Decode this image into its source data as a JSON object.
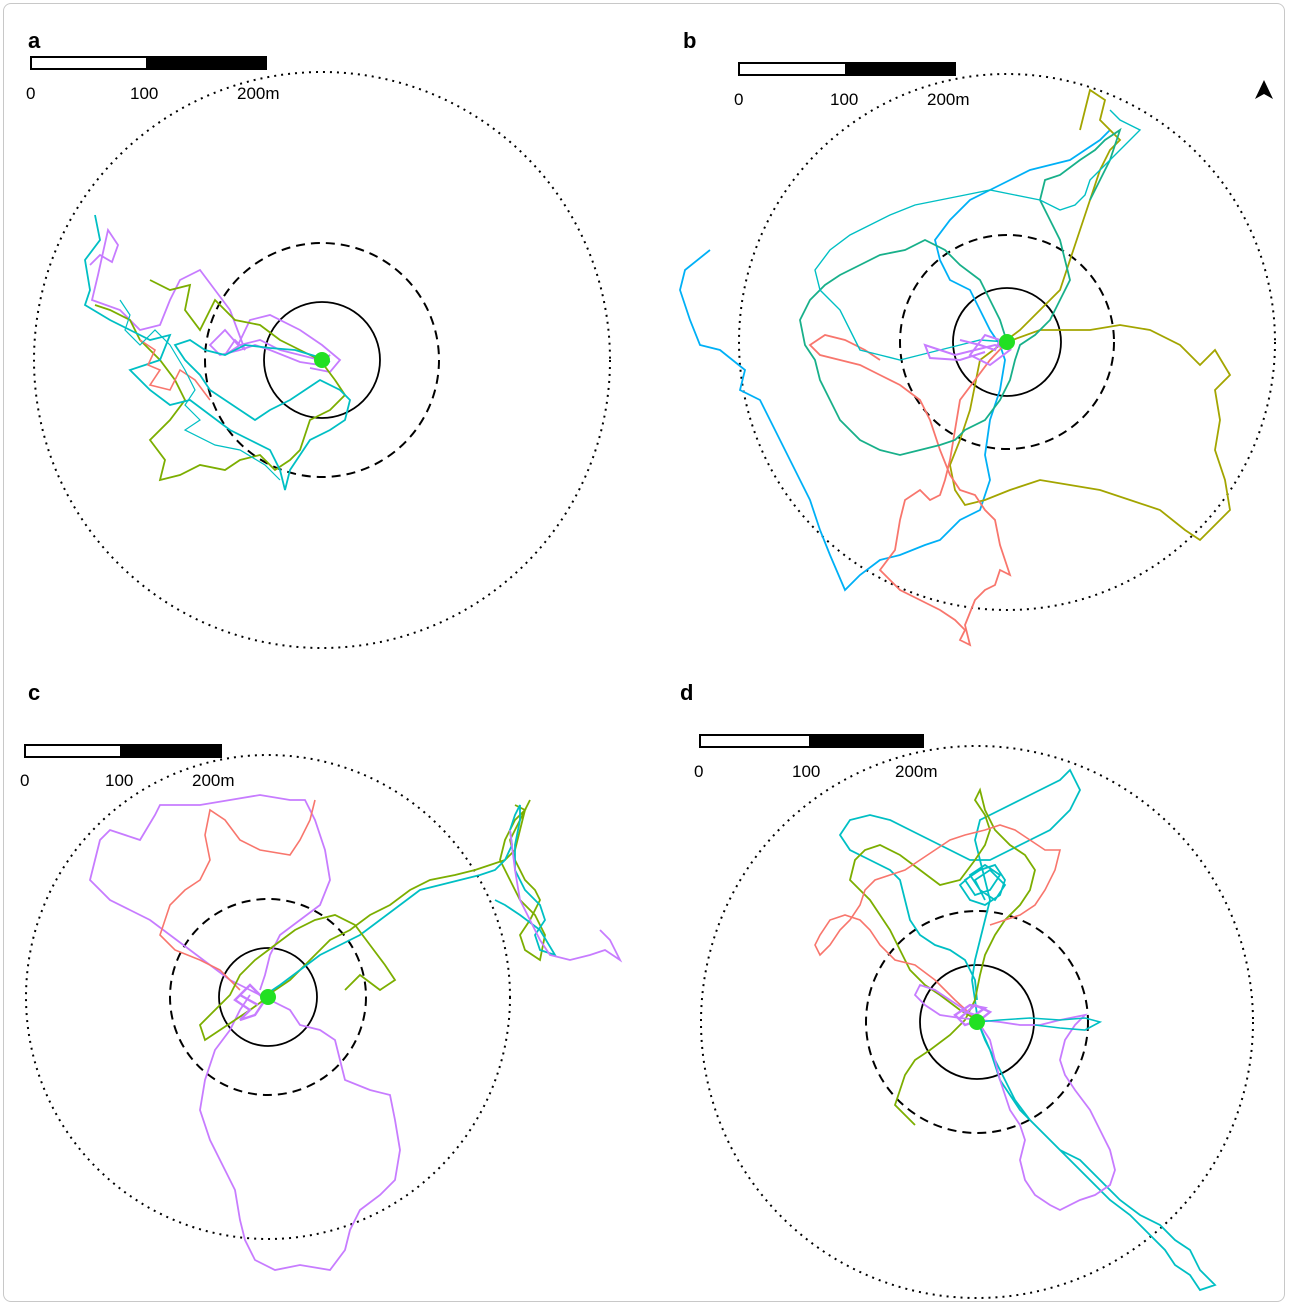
{
  "figure": {
    "panels": [
      {
        "id": "a",
        "label": "a",
        "scale_labels": [
          "0",
          "100",
          "200m"
        ],
        "north_arrow": false,
        "buffers": [
          "solid",
          "dashed",
          "dotted"
        ],
        "site_marker_color": "#22e022"
      },
      {
        "id": "b",
        "label": "b",
        "scale_labels": [
          "0",
          "100",
          "200m"
        ],
        "north_arrow": true,
        "buffers": [
          "solid",
          "dashed",
          "dotted"
        ],
        "site_marker_color": "#22e022"
      },
      {
        "id": "c",
        "label": "c",
        "scale_labels": [
          "0",
          "100",
          "200m"
        ],
        "north_arrow": false,
        "buffers": [
          "solid",
          "dashed",
          "dotted"
        ],
        "site_marker_color": "#22e022"
      },
      {
        "id": "d",
        "label": "d",
        "scale_labels": [
          "0",
          "100",
          "200m"
        ],
        "north_arrow": false,
        "buffers": [
          "solid",
          "dashed",
          "dotted"
        ],
        "site_marker_color": "#22e022"
      }
    ],
    "track_colors": [
      "#f8766d",
      "#7cae00",
      "#00bfc4",
      "#c77cff",
      "#a3a500",
      "#00b0f6",
      "#18b08a"
    ],
    "icons": {
      "north": "north-arrow-icon"
    }
  }
}
